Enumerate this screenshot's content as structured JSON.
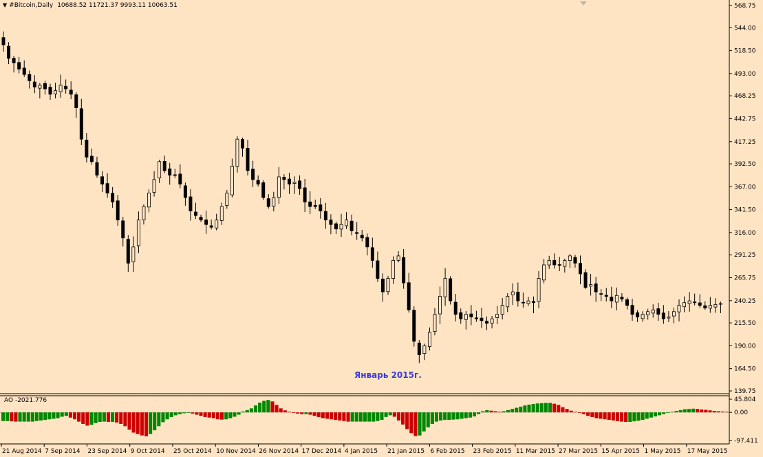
{
  "window": {
    "symbol_title": "#Bitcoin,Daily",
    "ohlc_text": "10688.52 11721.37 9993.11 10063.51"
  },
  "annotation": {
    "text": "Январь 2015г."
  },
  "indicator": {
    "label": "AO -2021.776"
  },
  "colors": {
    "background": "#ffe4c4",
    "candle": "#000000",
    "ao_up": "#008800",
    "ao_down": "#cc0000",
    "annotation": "#3b3bd6"
  },
  "chart_data": [
    {
      "type": "candlestick",
      "title": "#Bitcoin,Daily",
      "ylim": [
        139.75,
        568.75
      ],
      "y_ticks": [
        "568.75",
        "544.00",
        "518.50",
        "493.00",
        "468.25",
        "442.75",
        "417.25",
        "392.50",
        "367.00",
        "341.50",
        "316.00",
        "291.25",
        "265.75",
        "240.25",
        "215.50",
        "190.00",
        "164.50",
        "139.75"
      ],
      "x_ticks": [
        "21 Aug 2014",
        "7 Sep 2014",
        "23 Sep 2014",
        "9 Oct 2014",
        "25 Oct 2014",
        "10 Nov 2014",
        "26 Nov 2014",
        "17 Dec 2014",
        "4 Jan 2015",
        "21 Jan 2015",
        "6 Feb 2015",
        "23 Feb 2015",
        "11 Mar 2015",
        "27 Mar 2015",
        "15 Apr 2015",
        "1 May 2015",
        "17 May 2015"
      ],
      "close_series": [
        525,
        510,
        505,
        498,
        492,
        485,
        478,
        480,
        476,
        470,
        474,
        480,
        476,
        470,
        455,
        420,
        400,
        395,
        380,
        370,
        360,
        350,
        330,
        310,
        282,
        300,
        330,
        345,
        360,
        375,
        395,
        385,
        380,
        380,
        370,
        355,
        340,
        335,
        330,
        325,
        322,
        330,
        345,
        360,
        390,
        420,
        410,
        385,
        375,
        370,
        355,
        345,
        355,
        378,
        375,
        370,
        372,
        365,
        350,
        345,
        345,
        340,
        330,
        325,
        320,
        325,
        330,
        318,
        315,
        310,
        300,
        285,
        265,
        250,
        265,
        285,
        290,
        260,
        230,
        195,
        180,
        190,
        205,
        225,
        245,
        265,
        240,
        225,
        220,
        225,
        222,
        220,
        218,
        215,
        220,
        225,
        235,
        245,
        250,
        240,
        238,
        240,
        238,
        265,
        280,
        285,
        280,
        280,
        285,
        290,
        282,
        270,
        255,
        258,
        250,
        248,
        245,
        240,
        246,
        242,
        235,
        225,
        222,
        225,
        228,
        230,
        225,
        220,
        222,
        228,
        235,
        238,
        240,
        238,
        235,
        232,
        235,
        236,
        237
      ]
    },
    {
      "type": "bar",
      "title": "AO",
      "value_text": "-2021.776",
      "ylim": [
        -97.411,
        45.804
      ],
      "y_ticks": [
        "45.804",
        "0.00",
        "-97.411"
      ],
      "values": [
        -30,
        -30,
        -31,
        -32,
        -32,
        -32,
        -32,
        -32,
        -30,
        -28,
        -26,
        -24,
        -22,
        -20,
        -15,
        -12,
        -18,
        -24,
        -32,
        -40,
        -46,
        -43,
        -37,
        -33,
        -32,
        -33,
        -33,
        -35,
        -40,
        -48,
        -60,
        -70,
        -75,
        -80,
        -83,
        -75,
        -62,
        -48,
        -34,
        -24,
        -16,
        -10,
        -6,
        -3,
        -2,
        -4,
        -8,
        -12,
        -16,
        -18,
        -20,
        -24,
        -25,
        -24,
        -20,
        -15,
        -8,
        3,
        8,
        14,
        24,
        34,
        40,
        43,
        38,
        26,
        14,
        7,
        2,
        -2,
        -4,
        -6,
        -6,
        -8,
        -12,
        -16,
        -20,
        -22,
        -24,
        -26,
        -28,
        -30,
        -32,
        -32,
        -32,
        -32,
        -32,
        -32,
        -32,
        -30,
        -26,
        -16,
        -10,
        -15,
        -28,
        -42,
        -58,
        -72,
        -82,
        -80,
        -66,
        -52,
        -40,
        -32,
        -28,
        -26,
        -26,
        -25,
        -24,
        -22,
        -20,
        -18,
        -14,
        -6,
        4,
        8,
        6,
        4,
        2,
        4,
        8,
        12,
        16,
        20,
        24,
        27,
        29,
        31,
        32,
        33,
        33,
        30,
        26,
        18,
        12,
        6,
        2,
        -2,
        -6,
        -12,
        -16,
        -20,
        -22,
        -24,
        -26,
        -28,
        -30,
        -32,
        -33,
        -33,
        -31,
        -29,
        -26,
        -22,
        -18,
        -14,
        -10,
        -6,
        -2,
        2,
        5,
        8,
        11,
        12,
        13,
        12,
        10,
        9,
        7,
        5,
        4,
        3,
        2
      ]
    }
  ]
}
